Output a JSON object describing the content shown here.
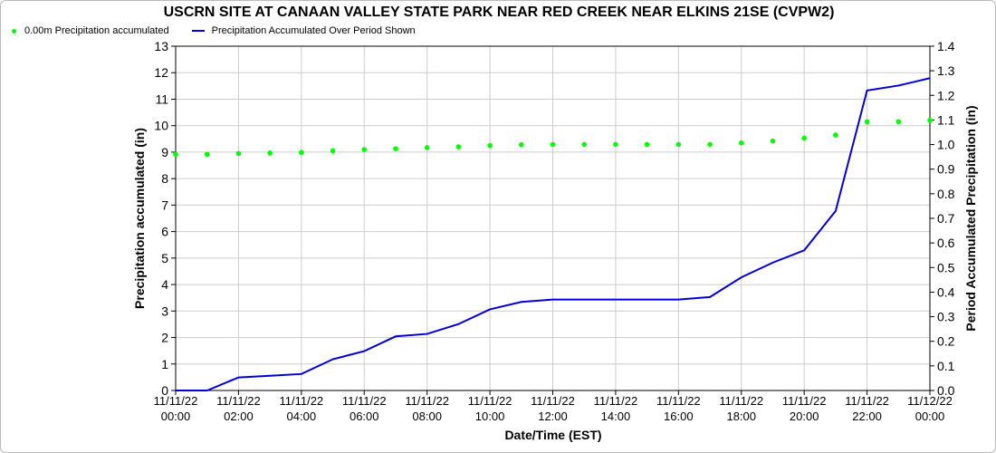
{
  "chart_data": {
    "type": "line",
    "title": "USCRN SITE AT CANAAN VALLEY STATE PARK NEAR RED CREEK NEAR ELKINS 21SE (CVPW2)",
    "xlabel": "Date/Time (EST)",
    "ylabel_left": "Precipitation accumulated (in)",
    "ylabel_right": "Period Accumulated Precipitation (in)",
    "ylim_left": [
      0,
      13
    ],
    "ylim_right": [
      0,
      1.4
    ],
    "yticks_left": [
      "0",
      "1",
      "2",
      "3",
      "4",
      "5",
      "6",
      "7",
      "8",
      "9",
      "10",
      "11",
      "12",
      "13"
    ],
    "yticks_right": [
      "0.0",
      "0.1",
      "0.2",
      "0.3",
      "0.4",
      "0.5",
      "0.6",
      "0.7",
      "0.8",
      "0.9",
      "1.0",
      "1.1",
      "1.2",
      "1.3",
      "1.4"
    ],
    "x_hours": [
      0,
      1,
      2,
      3,
      4,
      5,
      6,
      7,
      8,
      9,
      10,
      11,
      12,
      13,
      14,
      15,
      16,
      17,
      18,
      19,
      20,
      21,
      22,
      23,
      24
    ],
    "x_ticks": [
      {
        "hour": 0,
        "date": "11/11/22",
        "time": "00:00"
      },
      {
        "hour": 2,
        "date": "11/11/22",
        "time": "02:00"
      },
      {
        "hour": 4,
        "date": "11/11/22",
        "time": "04:00"
      },
      {
        "hour": 6,
        "date": "11/11/22",
        "time": "06:00"
      },
      {
        "hour": 8,
        "date": "11/11/22",
        "time": "08:00"
      },
      {
        "hour": 10,
        "date": "11/11/22",
        "time": "10:00"
      },
      {
        "hour": 12,
        "date": "11/11/22",
        "time": "12:00"
      },
      {
        "hour": 14,
        "date": "11/11/22",
        "time": "14:00"
      },
      {
        "hour": 16,
        "date": "11/11/22",
        "time": "16:00"
      },
      {
        "hour": 18,
        "date": "11/11/22",
        "time": "18:00"
      },
      {
        "hour": 20,
        "date": "11/11/22",
        "time": "20:00"
      },
      {
        "hour": 22,
        "date": "11/11/22",
        "time": "22:00"
      },
      {
        "hour": 24,
        "date": "11/12/22",
        "time": "00:00"
      }
    ],
    "series": [
      {
        "name": "0.00m Precipitation accumulated",
        "axis": "left",
        "style": "dots",
        "color": "#00ff00",
        "values": [
          8.92,
          8.92,
          8.95,
          8.97,
          8.99,
          9.05,
          9.1,
          9.13,
          9.17,
          9.2,
          9.25,
          9.28,
          9.29,
          9.29,
          9.29,
          9.29,
          9.29,
          9.29,
          9.35,
          9.42,
          9.53,
          9.65,
          10.15,
          10.15,
          10.2
        ]
      },
      {
        "name": "Precipitation Accumulated Over Period Shown",
        "axis": "right",
        "style": "line",
        "color": "#0000dd",
        "values": [
          0.0,
          0.0,
          0.053,
          0.06,
          0.067,
          0.127,
          0.16,
          0.22,
          0.23,
          0.27,
          0.33,
          0.36,
          0.37,
          0.37,
          0.37,
          0.37,
          0.37,
          0.38,
          0.46,
          0.52,
          0.57,
          0.73,
          1.22,
          1.24,
          1.27
        ]
      }
    ],
    "grid": true,
    "legend": "top-left"
  }
}
